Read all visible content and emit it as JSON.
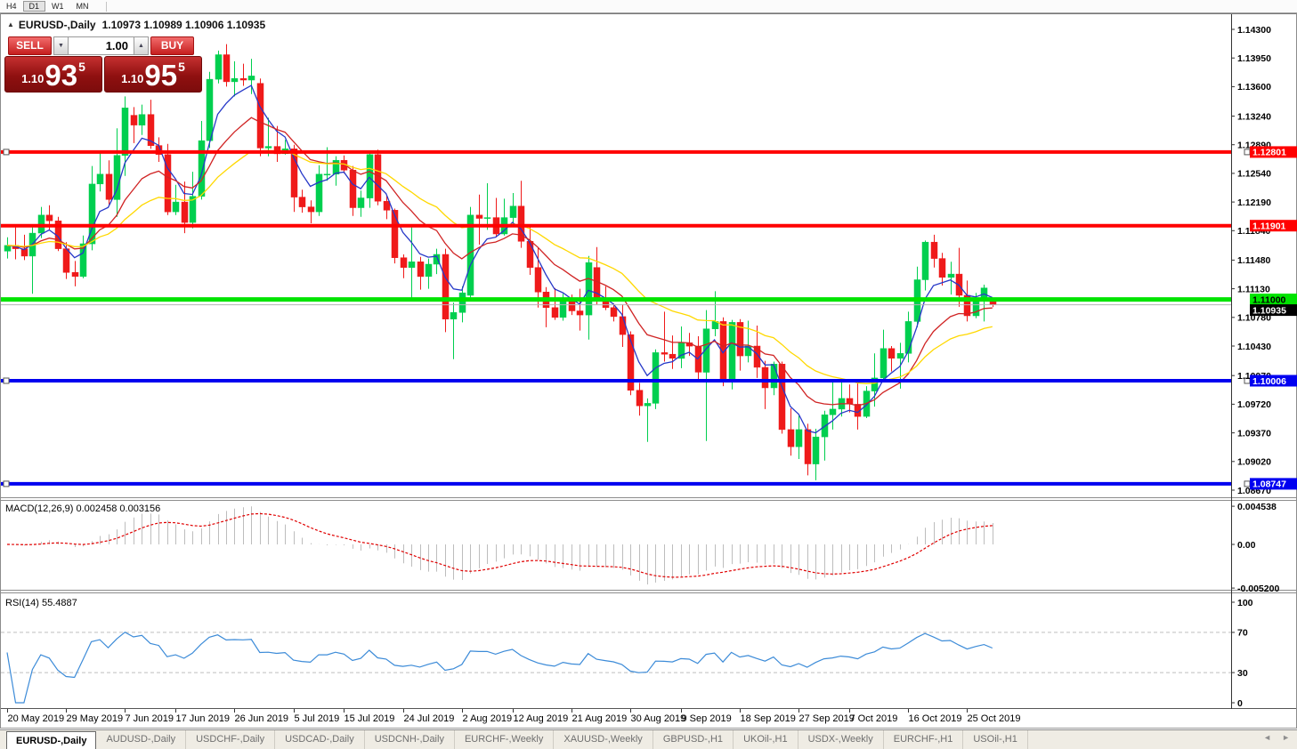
{
  "timeframe_toolbar": {
    "items": [
      {
        "label": "H4",
        "active": false
      },
      {
        "label": "D1",
        "active": true
      },
      {
        "label": "W1",
        "active": false
      },
      {
        "label": "MN",
        "active": false
      }
    ]
  },
  "chart": {
    "collapse_icon": "▲",
    "symbol_title": "EURUSD-,Daily",
    "ohlc_title": "1.10973 1.10989 1.10906 1.10935"
  },
  "trade_panel": {
    "sell_label": "SELL",
    "buy_label": "BUY",
    "volume": "1.00",
    "down_arrow": "▼",
    "up_arrow": "▲",
    "sell_price": {
      "prefix": "1.10",
      "big": "93",
      "sup": "5"
    },
    "buy_price": {
      "prefix": "1.10",
      "big": "95",
      "sup": "5"
    }
  },
  "price_axis": {
    "ticks": [
      "1.14300",
      "1.13950",
      "1.13600",
      "1.13240",
      "1.12890",
      "1.12540",
      "1.12190",
      "1.11840",
      "1.11480",
      "1.11130",
      "1.10780",
      "1.10430",
      "1.10070",
      "1.09720",
      "1.09370",
      "1.09020",
      "1.08670"
    ]
  },
  "horizontal_lines": [
    {
      "price": 1.12801,
      "label": "1.12801",
      "color": "#FF0000",
      "text_color": "#FFFFFF",
      "width": 4,
      "handles": true
    },
    {
      "price": 1.11901,
      "label": "1.11901",
      "color": "#FF0000",
      "text_color": "#FFFFFF",
      "width": 4,
      "handles": false
    },
    {
      "price": 1.11,
      "label": "1.11000",
      "color": "#00E400",
      "text_color": "#000000",
      "width": 5,
      "handles": false
    },
    {
      "price": 1.10006,
      "label": "1.10006",
      "color": "#0000F0",
      "text_color": "#FFFFFF",
      "width": 4,
      "handles": true
    },
    {
      "price": 1.08747,
      "label": "1.08747",
      "color": "#0000F0",
      "text_color": "#FFFFFF",
      "width": 4,
      "handles": true
    }
  ],
  "current_price": {
    "value": 1.10935,
    "label": "1.10935",
    "line_color": "#B5B5B5",
    "tag_bg": "#000000",
    "tag_text": "#FFFFFF"
  },
  "chart_data": {
    "type": "candlestick",
    "symbol": "EURUSD",
    "timeframe": "Daily",
    "bull_color": "#00CF4F",
    "bear_color": "#EF1A1A",
    "moving_averages": [
      {
        "period": 5,
        "color": "#2638C8"
      },
      {
        "period": 13,
        "color": "#D02424"
      },
      {
        "period": 26,
        "color": "#FFD800"
      }
    ],
    "date_ticks": [
      {
        "label": "20 May 2019",
        "index": 0
      },
      {
        "label": "29 May 2019",
        "index": 7
      },
      {
        "label": "7 Jun 2019",
        "index": 14
      },
      {
        "label": "17 Jun 2019",
        "index": 20
      },
      {
        "label": "26 Jun 2019",
        "index": 27
      },
      {
        "label": "5 Jul 2019",
        "index": 34
      },
      {
        "label": "15 Jul 2019",
        "index": 40
      },
      {
        "label": "24 Jul 2019",
        "index": 47
      },
      {
        "label": "2 Aug 2019",
        "index": 54
      },
      {
        "label": "12 Aug 2019",
        "index": 60
      },
      {
        "label": "21 Aug 2019",
        "index": 67
      },
      {
        "label": "30 Aug 2019",
        "index": 74
      },
      {
        "label": "9 Sep 2019",
        "index": 80
      },
      {
        "label": "18 Sep 2019",
        "index": 87
      },
      {
        "label": "27 Sep 2019",
        "index": 94
      },
      {
        "label": "7 Oct 2019",
        "index": 100
      },
      {
        "label": "16 Oct 2019",
        "index": 107
      },
      {
        "label": "25 Oct 2019",
        "index": 114
      }
    ],
    "ohlc": [
      [
        1.1159,
        1.1176,
        1.115,
        1.1166
      ],
      [
        1.1166,
        1.1188,
        1.1149,
        1.1162
      ],
      [
        1.1162,
        1.1179,
        1.1148,
        1.1153
      ],
      [
        1.1153,
        1.1188,
        1.1107,
        1.1181
      ],
      [
        1.1181,
        1.1213,
        1.1175,
        1.1203
      ],
      [
        1.1203,
        1.1215,
        1.1185,
        1.1196
      ],
      [
        1.1196,
        1.1201,
        1.1159,
        1.1162
      ],
      [
        1.1162,
        1.117,
        1.1125,
        1.1133
      ],
      [
        1.1133,
        1.1147,
        1.1116,
        1.1128
      ],
      [
        1.1128,
        1.1178,
        1.1126,
        1.1168
      ],
      [
        1.1168,
        1.1263,
        1.116,
        1.1241
      ],
      [
        1.1241,
        1.128,
        1.1232,
        1.1253
      ],
      [
        1.1253,
        1.127,
        1.1216,
        1.1222
      ],
      [
        1.1222,
        1.1309,
        1.1201,
        1.1276
      ],
      [
        1.1276,
        1.1348,
        1.1251,
        1.1334
      ],
      [
        1.1325,
        1.1335,
        1.1291,
        1.1313
      ],
      [
        1.1313,
        1.1338,
        1.1301,
        1.1326
      ],
      [
        1.1326,
        1.1344,
        1.1284,
        1.1288
      ],
      [
        1.1288,
        1.1298,
        1.1268,
        1.1277
      ],
      [
        1.1277,
        1.129,
        1.1203,
        1.1207
      ],
      [
        1.1207,
        1.124,
        1.1203,
        1.1219
      ],
      [
        1.1219,
        1.1244,
        1.1181,
        1.1194
      ],
      [
        1.1194,
        1.1256,
        1.1187,
        1.1226
      ],
      [
        1.1226,
        1.1318,
        1.1222,
        1.1294
      ],
      [
        1.1294,
        1.1378,
        1.1285,
        1.1369
      ],
      [
        1.1369,
        1.1404,
        1.1364,
        1.1399
      ],
      [
        1.1399,
        1.1412,
        1.136,
        1.1366
      ],
      [
        1.1366,
        1.1391,
        1.1348,
        1.137
      ],
      [
        1.137,
        1.1388,
        1.1361,
        1.1368
      ],
      [
        1.1368,
        1.1394,
        1.1351,
        1.1373
      ],
      [
        1.1364,
        1.137,
        1.1275,
        1.1285
      ],
      [
        1.1285,
        1.1322,
        1.1275,
        1.1287
      ],
      [
        1.1287,
        1.1312,
        1.1268,
        1.1278
      ],
      [
        1.1278,
        1.1295,
        1.1277,
        1.1284
      ],
      [
        1.1284,
        1.1289,
        1.1207,
        1.1225
      ],
      [
        1.1225,
        1.1234,
        1.1206,
        1.1213
      ],
      [
        1.1213,
        1.1221,
        1.1193,
        1.1207
      ],
      [
        1.1207,
        1.1264,
        1.1202,
        1.1253
      ],
      [
        1.1253,
        1.1286,
        1.1245,
        1.1253
      ],
      [
        1.1253,
        1.1275,
        1.1239,
        1.127
      ],
      [
        1.127,
        1.1276,
        1.1254,
        1.1258
      ],
      [
        1.1258,
        1.1263,
        1.1202,
        1.1212
      ],
      [
        1.1212,
        1.1233,
        1.1201,
        1.1224
      ],
      [
        1.1224,
        1.1282,
        1.1212,
        1.1277
      ],
      [
        1.1277,
        1.1283,
        1.1215,
        1.122
      ],
      [
        1.122,
        1.1227,
        1.1198,
        1.1209
      ],
      [
        1.1209,
        1.1211,
        1.1144,
        1.1151
      ],
      [
        1.1151,
        1.1155,
        1.1126,
        1.1139
      ],
      [
        1.1139,
        1.1188,
        1.1101,
        1.1146
      ],
      [
        1.1146,
        1.1152,
        1.1112,
        1.1128
      ],
      [
        1.1128,
        1.115,
        1.1113,
        1.1143
      ],
      [
        1.1143,
        1.1162,
        1.1131,
        1.1155
      ],
      [
        1.1155,
        1.1162,
        1.106,
        1.1076
      ],
      [
        1.1076,
        1.1096,
        1.1027,
        1.1084
      ],
      [
        1.1084,
        1.1116,
        1.1072,
        1.1108
      ],
      [
        1.1105,
        1.1213,
        1.1101,
        1.1203
      ],
      [
        1.1203,
        1.1228,
        1.1167,
        1.1199
      ],
      [
        1.1199,
        1.1242,
        1.1185,
        1.12
      ],
      [
        1.12,
        1.1224,
        1.1176,
        1.118
      ],
      [
        1.118,
        1.1223,
        1.1178,
        1.12
      ],
      [
        1.12,
        1.123,
        1.1192,
        1.1214
      ],
      [
        1.1214,
        1.1245,
        1.1163,
        1.1171
      ],
      [
        1.1171,
        1.1192,
        1.113,
        1.1139
      ],
      [
        1.1139,
        1.1163,
        1.109,
        1.1109
      ],
      [
        1.1109,
        1.1115,
        1.1066,
        1.109
      ],
      [
        1.109,
        1.1114,
        1.1075,
        1.1078
      ],
      [
        1.1078,
        1.1107,
        1.1074,
        1.1099
      ],
      [
        1.1099,
        1.1106,
        1.1081,
        1.1086
      ],
      [
        1.1086,
        1.1113,
        1.1062,
        1.1081
      ],
      [
        1.1081,
        1.1153,
        1.1051,
        1.1145
      ],
      [
        1.1139,
        1.1164,
        1.1094,
        1.1101
      ],
      [
        1.1101,
        1.1116,
        1.1087,
        1.109
      ],
      [
        1.109,
        1.1095,
        1.1073,
        1.1079
      ],
      [
        1.1079,
        1.1094,
        1.1042,
        1.1057
      ],
      [
        1.1057,
        1.1061,
        1.0983,
        1.0989
      ],
      [
        1.0989,
        1.0998,
        1.0958,
        1.097
      ],
      [
        1.097,
        1.0979,
        1.0926,
        1.0973
      ],
      [
        1.0973,
        1.1039,
        1.0966,
        1.1035
      ],
      [
        1.1035,
        1.1085,
        1.1024,
        1.1033
      ],
      [
        1.1033,
        1.1056,
        1.1015,
        1.1028
      ],
      [
        1.1028,
        1.1067,
        1.1016,
        1.1047
      ],
      [
        1.1047,
        1.1059,
        1.1031,
        1.1043
      ],
      [
        1.1043,
        1.1055,
        1.0999,
        1.1011
      ],
      [
        1.1011,
        1.1087,
        1.0927,
        1.1064
      ],
      [
        1.1064,
        1.111,
        1.1055,
        1.1073
      ],
      [
        1.1073,
        1.1078,
        1.0994,
        1.1003
      ],
      [
        1.1003,
        1.1075,
        1.099,
        1.1072
      ],
      [
        1.1072,
        1.1076,
        1.1013,
        1.1031
      ],
      [
        1.1031,
        1.1074,
        1.1023,
        1.1043
      ],
      [
        1.1043,
        1.1068,
        1.1004,
        1.1017
      ],
      [
        1.1017,
        1.1025,
        1.0966,
        1.0992
      ],
      [
        1.0992,
        1.1024,
        1.0983,
        1.1021
      ],
      [
        1.1021,
        1.1024,
        1.0936,
        1.0941
      ],
      [
        1.0941,
        1.0967,
        1.0909,
        1.092
      ],
      [
        1.092,
        1.0958,
        1.0905,
        1.0941
      ],
      [
        1.0941,
        1.0948,
        1.0885,
        1.0899
      ],
      [
        1.0899,
        1.0942,
        1.0879,
        1.0932
      ],
      [
        1.0932,
        1.0964,
        1.0903,
        1.0959
      ],
      [
        1.0959,
        1.0999,
        1.0941,
        1.0966
      ],
      [
        1.0966,
        1.0999,
        1.0957,
        1.0979
      ],
      [
        1.0979,
        1.0996,
        1.0962,
        1.0972
      ],
      [
        1.0972,
        1.0999,
        1.0941,
        1.0957
      ],
      [
        1.0957,
        1.0994,
        1.0955,
        1.0988
      ],
      [
        1.0988,
        1.1034,
        1.0969,
        1.1004
      ],
      [
        1.1004,
        1.1063,
        1.1002,
        1.104
      ],
      [
        1.104,
        1.1043,
        1.1012,
        1.1028
      ],
      [
        1.1028,
        1.1047,
        1.0991,
        1.1034
      ],
      [
        1.1034,
        1.1085,
        1.1023,
        1.1073
      ],
      [
        1.1073,
        1.114,
        1.1066,
        1.1124
      ],
      [
        1.1124,
        1.1172,
        1.1111,
        1.117
      ],
      [
        1.117,
        1.1179,
        1.1139,
        1.115
      ],
      [
        1.115,
        1.1157,
        1.1117,
        1.1127
      ],
      [
        1.1127,
        1.1146,
        1.1106,
        1.1131
      ],
      [
        1.1131,
        1.1163,
        1.1091,
        1.1105
      ],
      [
        1.1105,
        1.1123,
        1.1073,
        1.108
      ],
      [
        1.108,
        1.1108,
        1.1077,
        1.1099
      ],
      [
        1.1099,
        1.1118,
        1.1073,
        1.1114
      ],
      [
        1.10973,
        1.10989,
        1.10906,
        1.10935
      ]
    ]
  },
  "macd": {
    "label": "MACD(12,26,9)",
    "value_main": "0.002458",
    "value_signal": "0.003156",
    "axis_labels": [
      "0.004538",
      "0.00",
      "-0.005200"
    ],
    "axis_values": [
      0.004538,
      0,
      -0.0052
    ],
    "histogram_color": "#BDBDBD",
    "signal_color": "#E00000"
  },
  "rsi": {
    "label": "RSI(14)",
    "value": "55.4887",
    "period": 14,
    "axis_labels": [
      "100",
      "70",
      "30",
      "0"
    ],
    "axis_values": [
      100,
      70,
      30,
      0
    ],
    "levels": [
      70,
      30
    ],
    "line_color": "#3C8BD8",
    "level_color": "#BFBFBF"
  },
  "tab_bar": {
    "tabs": [
      {
        "label": "EURUSD-,Daily",
        "active": true
      },
      {
        "label": "AUDUSD-,Daily",
        "active": false
      },
      {
        "label": "USDCHF-,Daily",
        "active": false
      },
      {
        "label": "USDCAD-,Daily",
        "active": false
      },
      {
        "label": "USDCNH-,Daily",
        "active": false
      },
      {
        "label": "EURCHF-,Weekly",
        "active": false
      },
      {
        "label": "XAUUSD-,Weekly",
        "active": false
      },
      {
        "label": "GBPUSD-,H1",
        "active": false
      },
      {
        "label": "UKOil-,H1",
        "active": false
      },
      {
        "label": "USDX-,Weekly",
        "active": false
      },
      {
        "label": "EURCHF-,H1",
        "active": false
      },
      {
        "label": "USOil-,H1",
        "active": false
      }
    ],
    "left_arrow": "◄",
    "right_arrow": "►"
  }
}
